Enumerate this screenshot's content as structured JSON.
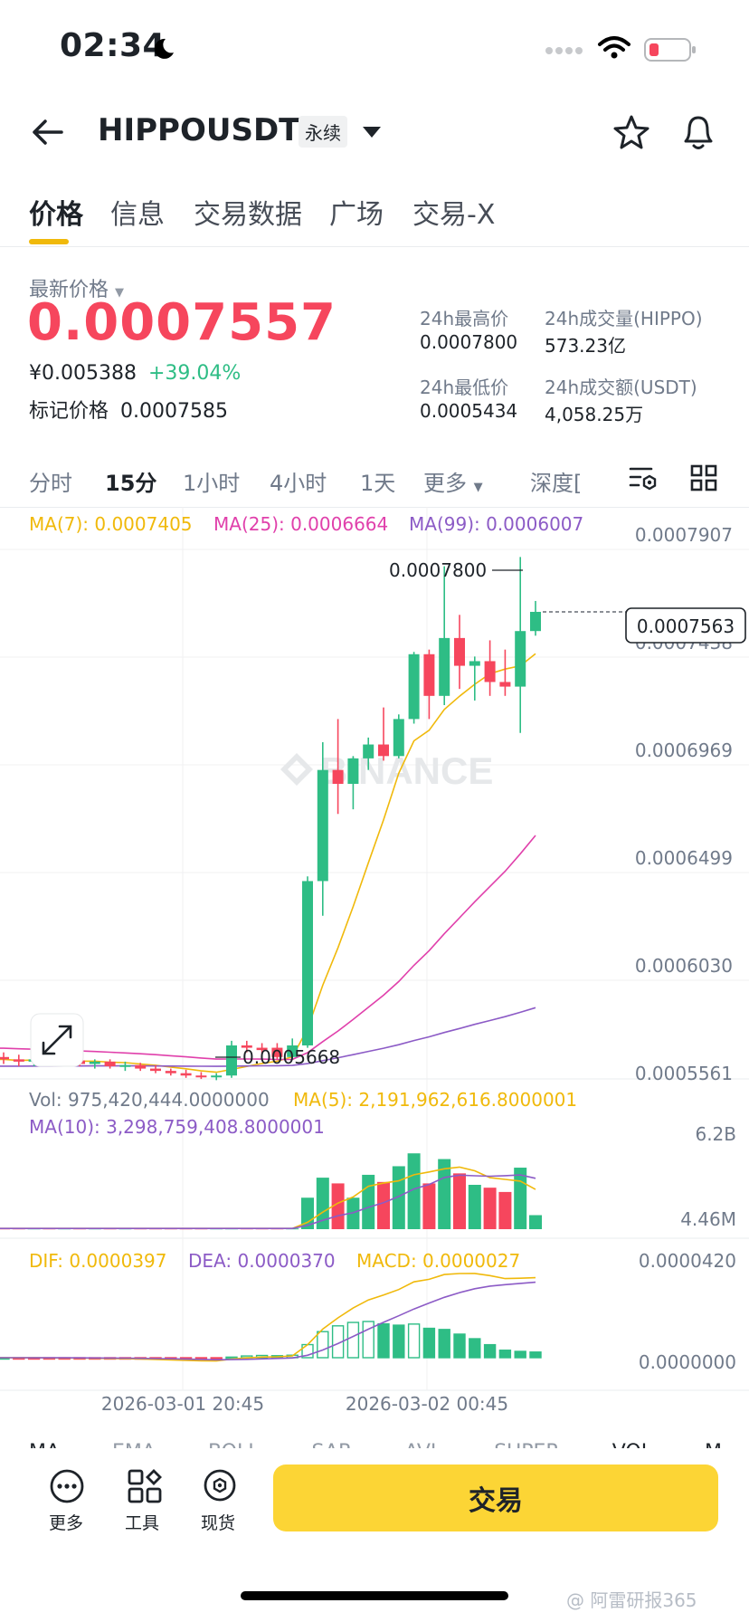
{
  "status_bar": {
    "time": "02:34"
  },
  "header": {
    "symbol": "HIPPOUSDT",
    "contract_badge": "永续"
  },
  "tabs": [
    "价格",
    "信息",
    "交易数据",
    "广场",
    "交易-X"
  ],
  "price": {
    "latest_label": "最新价格",
    "last_price": "0.0007557",
    "cny_price": "¥0.005388",
    "change_pct": "+39.04%",
    "mark_label": "标记价格",
    "mark_price": "0.0007585",
    "high_label": "24h最高价",
    "high_value": "0.0007800",
    "low_label": "24h最低价",
    "low_value": "0.0005434",
    "vol_base_label": "24h成交量(HIPPO)",
    "vol_base_value": "573.23亿",
    "vol_quote_label": "24h成交额(USDT)",
    "vol_quote_value": "4,058.25万"
  },
  "timeframes": [
    "分时",
    "15分",
    "1小时",
    "4小时",
    "1天",
    "更多",
    "深度["
  ],
  "chart": {
    "ma7_text": "MA(7): 0.0007405",
    "ma25_text": "MA(25): 0.0006664",
    "ma99_text": "MA(99): 0.0006007",
    "price_ticks": [
      "0.0007907",
      "0.0007438",
      "0.0006969",
      "0.0006499",
      "0.0006030",
      "0.0005561"
    ],
    "current_price_tag": "0.0007563",
    "high_marker": "0.0007800",
    "low_marker": "0.0005668",
    "watermark": "BINANCE",
    "vol_text": "Vol: 975,420,444.0000000",
    "vol_ma5_text": "MA(5): 2,191,962,616.8000001",
    "vol_ma10_text": "MA(10): 3,298,759,408.8000001",
    "vol_ticks": [
      "6.2B",
      "4.46M"
    ],
    "dif_text": "DIF: 0.0000397",
    "dea_text": "DEA: 0.0000370",
    "macd_text": "MACD: 0.0000027",
    "macd_ticks": [
      "0.0000420",
      "0.0000000"
    ],
    "time_labels": [
      "2026-03-01 20:45",
      "2026-03-02 00:45"
    ],
    "colors": {
      "up": "#2ebd85",
      "down": "#f6465d",
      "ma7": "#f0b90b",
      "ma25": "#e040ab",
      "ma99": "#8c5bc6"
    }
  },
  "chart_data": {
    "type": "candlestick",
    "interval": "15分",
    "candles": [
      {
        "o": 0.000564,
        "h": 0.000566,
        "l": 0.000561,
        "c": 0.000563
      },
      {
        "o": 0.000563,
        "h": 0.000565,
        "l": 0.00056,
        "c": 0.000562
      },
      {
        "o": 0.000562,
        "h": 0.000564,
        "l": 0.00056,
        "c": 0.000563
      },
      {
        "o": 0.000563,
        "h": 0.000565,
        "l": 0.000561,
        "c": 0.000562
      },
      {
        "o": 0.000562,
        "h": 0.000564,
        "l": 0.00056,
        "c": 0.0005625
      },
      {
        "o": 0.0005625,
        "h": 0.000564,
        "l": 0.00056,
        "c": 0.000561
      },
      {
        "o": 0.000561,
        "h": 0.000563,
        "l": 0.000559,
        "c": 0.000562
      },
      {
        "o": 0.000562,
        "h": 0.000563,
        "l": 0.000559,
        "c": 0.00056
      },
      {
        "o": 0.00056,
        "h": 0.000562,
        "l": 0.000558,
        "c": 0.0005605
      },
      {
        "o": 0.0005605,
        "h": 0.0005615,
        "l": 0.000558,
        "c": 0.000559
      },
      {
        "o": 0.000559,
        "h": 0.0005605,
        "l": 0.000557,
        "c": 0.000558
      },
      {
        "o": 0.000558,
        "h": 0.000559,
        "l": 0.000556,
        "c": 0.000557
      },
      {
        "o": 0.000557,
        "h": 0.0005585,
        "l": 0.000555,
        "c": 0.000556
      },
      {
        "o": 0.000556,
        "h": 0.0005575,
        "l": 0.0005545,
        "c": 0.0005555
      },
      {
        "o": 0.0005555,
        "h": 0.000557,
        "l": 0.000554,
        "c": 0.000556
      },
      {
        "o": 0.000556,
        "h": 0.000571,
        "l": 0.000555,
        "c": 0.000569
      },
      {
        "o": 0.000569,
        "h": 0.000571,
        "l": 0.000566,
        "c": 0.000568
      },
      {
        "o": 0.000568,
        "h": 0.00057,
        "l": 0.000564,
        "c": 0.000567
      },
      {
        "o": 0.000568,
        "h": 0.00057,
        "l": 0.000563,
        "c": 0.000564
      },
      {
        "o": 0.000564,
        "h": 0.000572,
        "l": 0.000563,
        "c": 0.000569
      },
      {
        "o": 0.000569,
        "h": 0.000642,
        "l": 0.000568,
        "c": 0.00064
      },
      {
        "o": 0.00064,
        "h": 0.0007,
        "l": 0.000625,
        "c": 0.000688
      },
      {
        "o": 0.000688,
        "h": 0.00071,
        "l": 0.000669,
        "c": 0.000682
      },
      {
        "o": 0.000682,
        "h": 0.000694,
        "l": 0.000671,
        "c": 0.000693
      },
      {
        "o": 0.000693,
        "h": 0.000702,
        "l": 0.000688,
        "c": 0.000699
      },
      {
        "o": 0.000699,
        "h": 0.000715,
        "l": 0.000692,
        "c": 0.000694
      },
      {
        "o": 0.000694,
        "h": 0.000712,
        "l": 0.000693,
        "c": 0.00071
      },
      {
        "o": 0.00071,
        "h": 0.000739,
        "l": 0.000708,
        "c": 0.000738
      },
      {
        "o": 0.000738,
        "h": 0.00074,
        "l": 0.00071,
        "c": 0.00072
      },
      {
        "o": 0.00072,
        "h": 0.000776,
        "l": 0.000716,
        "c": 0.000745
      },
      {
        "o": 0.000745,
        "h": 0.000755,
        "l": 0.000723,
        "c": 0.000733
      },
      {
        "o": 0.000733,
        "h": 0.000737,
        "l": 0.000718,
        "c": 0.000735
      },
      {
        "o": 0.000735,
        "h": 0.000744,
        "l": 0.00072,
        "c": 0.000726
      },
      {
        "o": 0.000726,
        "h": 0.00074,
        "l": 0.00072,
        "c": 0.000724
      },
      {
        "o": 0.000724,
        "h": 0.00078,
        "l": 0.000704,
        "c": 0.000748
      },
      {
        "o": 0.000748,
        "h": 0.000761,
        "l": 0.000746,
        "c": 0.0007563
      }
    ],
    "volumes": [
      0.05,
      0.05,
      0.05,
      0.05,
      0.05,
      0.05,
      0.05,
      0.05,
      0.05,
      0.05,
      0.05,
      0.05,
      0.05,
      0.05,
      0.05,
      0.05,
      0.05,
      0.05,
      0.05,
      0.05,
      2.2,
      3.6,
      3.2,
      2.2,
      3.8,
      3.3,
      4.4,
      5.3,
      3.2,
      4.9,
      3.9,
      3.1,
      2.9,
      2.6,
      4.3,
      0.98
    ],
    "y_axis_price": [
      0.0005561,
      0.0007907
    ],
    "vol_axis_max": 6.2,
    "vol_unit": "B"
  },
  "bottom_bar": {
    "more_label": "更多",
    "tools_label": "工具",
    "spot_label": "现货",
    "trade_label": "交易"
  },
  "indicator_row": [
    "MA",
    "EMA",
    "BOLL",
    "SAR",
    "AVL",
    "SUPER",
    "VOL",
    "MACD"
  ],
  "footer_watermark": "@ 阿雷研报365"
}
